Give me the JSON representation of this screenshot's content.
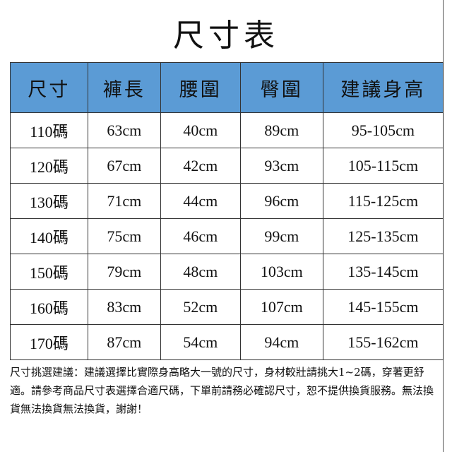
{
  "title": "尺寸表",
  "table": {
    "headers": [
      "尺寸",
      "褲長",
      "腰圍",
      "臀圍",
      "建議身高"
    ],
    "rows": [
      [
        "110碼",
        "63cm",
        "40cm",
        "89cm",
        "95-105cm"
      ],
      [
        "120碼",
        "67cm",
        "42cm",
        "93cm",
        "105-115cm"
      ],
      [
        "130碼",
        "71cm",
        "44cm",
        "96cm",
        "115-125cm"
      ],
      [
        "140碼",
        "75cm",
        "46cm",
        "99cm",
        "125-135cm"
      ],
      [
        "150碼",
        "79cm",
        "48cm",
        "103cm",
        "135-145cm"
      ],
      [
        "160碼",
        "83cm",
        "52cm",
        "107cm",
        "145-155cm"
      ],
      [
        "170碼",
        "87cm",
        "54cm",
        "94cm",
        "155-162cm"
      ]
    ]
  },
  "notes": "尺寸挑選建議：建議選擇比實際身高略大一號的尺寸，身材較壯請挑大1~2碼，穿著更舒適。請參考商品尺寸表選擇合適尺碼，下單前請務必確認尺寸，恕不提供換貨服務。無法換貨無法換貨無法換貨，謝謝！",
  "colors": {
    "header_bg": "#5b9bd5"
  }
}
